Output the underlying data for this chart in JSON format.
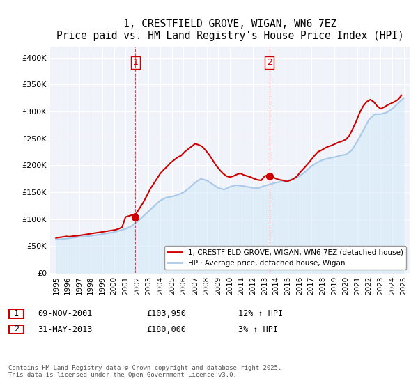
{
  "title": "1, CRESTFIELD GROVE, WIGAN, WN6 7EZ",
  "subtitle": "Price paid vs. HM Land Registry's House Price Index (HPI)",
  "ylabel_ticks": [
    "£0",
    "£50K",
    "£100K",
    "£150K",
    "£200K",
    "£250K",
    "£300K",
    "£350K",
    "£400K"
  ],
  "ytick_values": [
    0,
    50000,
    100000,
    150000,
    200000,
    250000,
    300000,
    350000,
    400000
  ],
  "ylim": [
    0,
    420000
  ],
  "xlim_start": 1994.5,
  "xlim_end": 2025.5,
  "hpi_years": [
    1995,
    1995.5,
    1996,
    1996.5,
    1997,
    1997.5,
    1998,
    1998.5,
    1999,
    1999.5,
    2000,
    2000.5,
    2001,
    2001.5,
    2002,
    2002.5,
    2003,
    2003.5,
    2004,
    2004.5,
    2005,
    2005.5,
    2006,
    2006.5,
    2007,
    2007.5,
    2008,
    2008.5,
    2009,
    2009.5,
    2010,
    2010.5,
    2011,
    2011.5,
    2012,
    2012.5,
    2013,
    2013.5,
    2014,
    2014.5,
    2015,
    2015.5,
    2016,
    2016.5,
    2017,
    2017.5,
    2018,
    2018.5,
    2019,
    2019.5,
    2020,
    2020.5,
    2021,
    2021.5,
    2022,
    2022.5,
    2023,
    2023.5,
    2024,
    2024.5,
    2025
  ],
  "hpi_values": [
    62000,
    63000,
    64000,
    65500,
    67000,
    68000,
    69000,
    70500,
    72000,
    74000,
    76000,
    79000,
    82000,
    87000,
    95000,
    105000,
    115000,
    125000,
    135000,
    140000,
    142000,
    145000,
    150000,
    158000,
    168000,
    175000,
    172000,
    165000,
    158000,
    155000,
    160000,
    163000,
    162000,
    160000,
    158000,
    158000,
    162000,
    165000,
    168000,
    170000,
    172000,
    175000,
    180000,
    188000,
    198000,
    205000,
    210000,
    213000,
    215000,
    218000,
    220000,
    228000,
    245000,
    265000,
    285000,
    295000,
    295000,
    298000,
    305000,
    315000,
    325000
  ],
  "price_years": [
    1995,
    1995.3,
    1995.6,
    1995.9,
    1996.2,
    1996.5,
    1996.8,
    1997.1,
    1997.4,
    1997.7,
    1998,
    1998.3,
    1998.6,
    1998.9,
    1999.2,
    1999.5,
    1999.8,
    2000.1,
    2000.4,
    2000.7,
    2001,
    2001.9,
    2002.2,
    2002.5,
    2002.8,
    2003.1,
    2003.4,
    2003.7,
    2004,
    2004.3,
    2004.6,
    2004.9,
    2005.2,
    2005.5,
    2005.8,
    2006.1,
    2006.4,
    2006.7,
    2007,
    2007.3,
    2007.6,
    2007.9,
    2008.2,
    2008.5,
    2008.8,
    2009.1,
    2009.4,
    2009.7,
    2010,
    2010.3,
    2010.6,
    2010.9,
    2011.2,
    2011.5,
    2011.8,
    2012.1,
    2012.4,
    2012.7,
    2013,
    2013.4,
    2013.7,
    2014,
    2014.3,
    2014.6,
    2014.9,
    2015.2,
    2015.5,
    2015.8,
    2016.1,
    2016.4,
    2016.7,
    2017,
    2017.3,
    2017.6,
    2017.9,
    2018.2,
    2018.5,
    2018.8,
    2019.1,
    2019.4,
    2019.7,
    2020,
    2020.3,
    2020.6,
    2020.9,
    2021.2,
    2021.5,
    2021.8,
    2022.1,
    2022.4,
    2022.7,
    2023,
    2023.3,
    2023.6,
    2023.9,
    2024.2,
    2024.5,
    2024.8
  ],
  "price_values": [
    65000,
    66000,
    67000,
    68000,
    67500,
    68500,
    69000,
    70000,
    71000,
    72000,
    73000,
    74000,
    75000,
    76000,
    77000,
    78000,
    79000,
    80000,
    82000,
    85000,
    103950,
    110000,
    120000,
    130000,
    142000,
    155000,
    165000,
    175000,
    185000,
    192000,
    198000,
    205000,
    210000,
    215000,
    218000,
    225000,
    230000,
    235000,
    240000,
    238000,
    235000,
    228000,
    220000,
    210000,
    200000,
    192000,
    185000,
    180000,
    178000,
    180000,
    183000,
    185000,
    182000,
    180000,
    178000,
    175000,
    173000,
    172000,
    180000,
    182000,
    178000,
    175000,
    173000,
    172000,
    170000,
    172000,
    175000,
    180000,
    188000,
    195000,
    202000,
    210000,
    218000,
    225000,
    228000,
    232000,
    235000,
    237000,
    240000,
    243000,
    245000,
    248000,
    255000,
    268000,
    282000,
    298000,
    310000,
    318000,
    322000,
    318000,
    310000,
    305000,
    308000,
    312000,
    315000,
    318000,
    322000,
    330000
  ],
  "sale1_x": 2001.85,
  "sale1_y": 103950,
  "sale2_x": 2013.42,
  "sale2_y": 180000,
  "vline1_x": 2001.85,
  "vline2_x": 2013.42,
  "line_color_price": "#cc0000",
  "line_color_hpi": "#aac8e8",
  "vline_color": "#cc0000",
  "fill_color": "#d0e8f8",
  "background_color": "#f0f4fa",
  "legend_label_price": "1, CRESTFIELD GROVE, WIGAN, WN6 7EZ (detached house)",
  "legend_label_hpi": "HPI: Average price, detached house, Wigan",
  "transaction1": [
    "1",
    "09-NOV-2001",
    "£103,950",
    "12% ↑ HPI"
  ],
  "transaction2": [
    "2",
    "31-MAY-2013",
    "£180,000",
    "3% ↑ HPI"
  ],
  "footer": "Contains HM Land Registry data © Crown copyright and database right 2025.\nThis data is licensed under the Open Government Licence v3.0.",
  "xtick_years": [
    1995,
    1996,
    1997,
    1998,
    1999,
    2000,
    2001,
    2002,
    2003,
    2004,
    2005,
    2006,
    2007,
    2008,
    2009,
    2010,
    2011,
    2012,
    2013,
    2014,
    2015,
    2016,
    2017,
    2018,
    2019,
    2020,
    2021,
    2022,
    2023,
    2024,
    2025
  ]
}
